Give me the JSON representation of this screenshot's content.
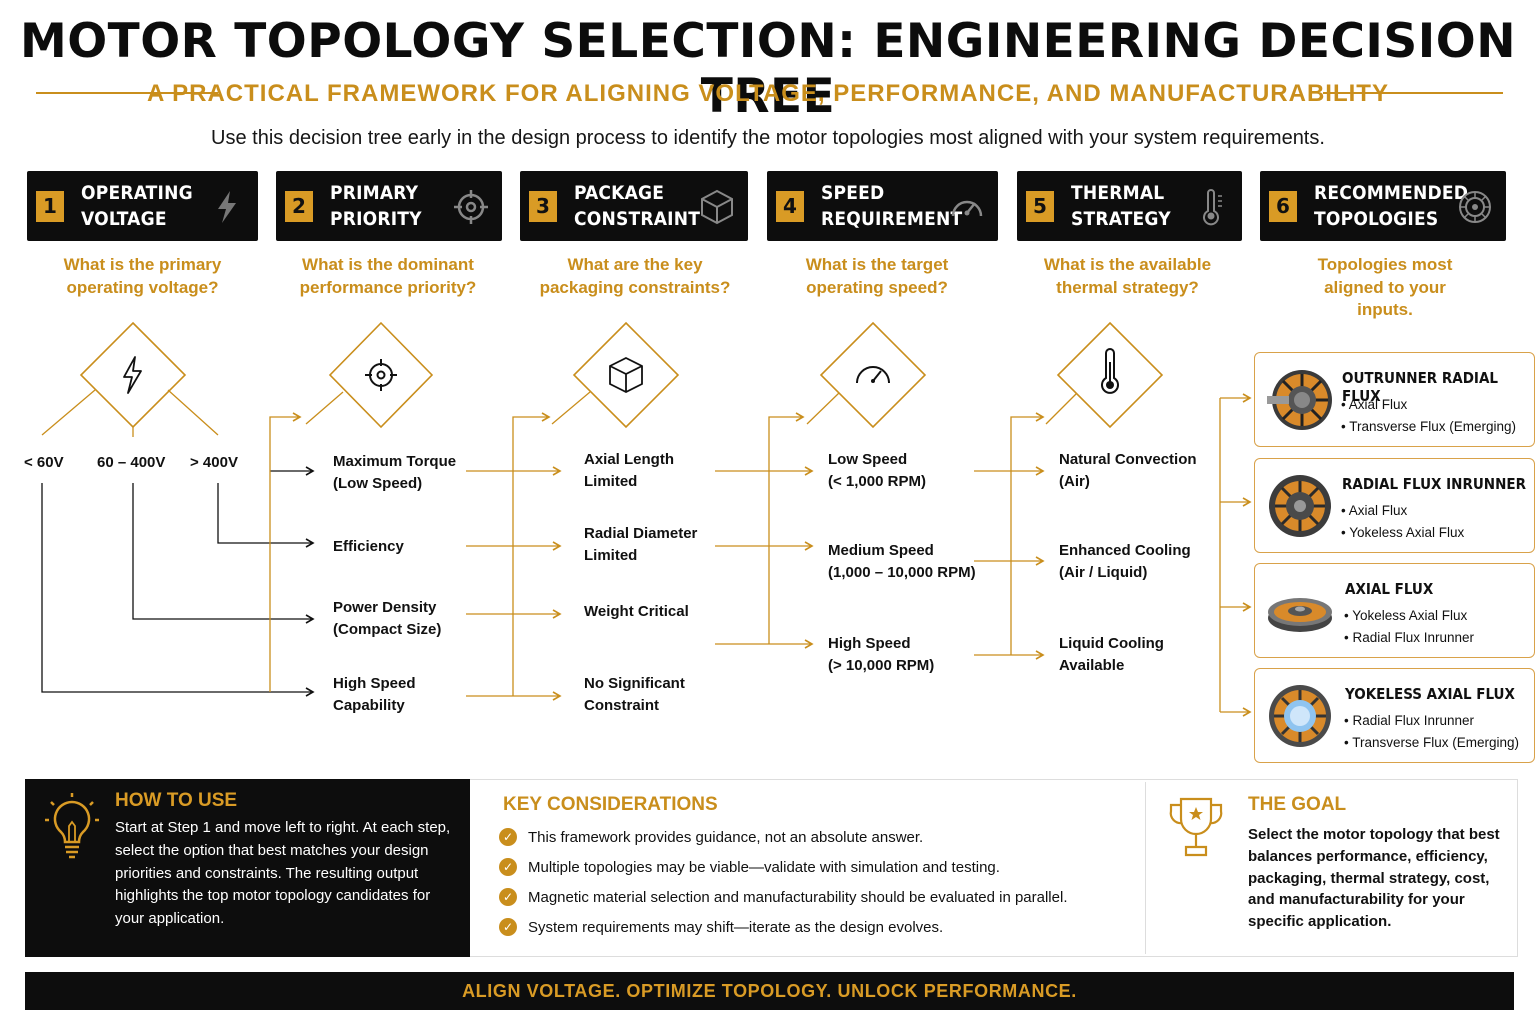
{
  "header": {
    "title": "MOTOR TOPOLOGY SELECTION: ENGINEERING DECISION TREE",
    "subtitle": "A PRACTICAL FRAMEWORK FOR ALIGNING VOLTAGE, PERFORMANCE, AND MANUFACTURABILITY",
    "intro": "Use this decision tree early in the design process to identify the motor topologies most aligned with your system requirements."
  },
  "steps": [
    {
      "num": "1",
      "title": "OPERATING\nVOLTAGE",
      "icon": "lightning-icon",
      "question": "What is the primary operating voltage?"
    },
    {
      "num": "2",
      "title": "PRIMARY\nPRIORITY",
      "icon": "target-icon",
      "question": "What is the dominant performance priority?"
    },
    {
      "num": "3",
      "title": "PACKAGE\nCONSTRAINT",
      "icon": "cube-icon",
      "question": "What are the key packaging constraints?"
    },
    {
      "num": "4",
      "title": "SPEED\nREQUIREMENT",
      "icon": "gauge-icon",
      "question": "What is the target operating speed?"
    },
    {
      "num": "5",
      "title": "THERMAL\nSTRATEGY",
      "icon": "thermometer-icon",
      "question": "What is the available thermal strategy?"
    },
    {
      "num": "6",
      "title": "RECOMMENDED\nTOPOLOGIES",
      "icon": "motor-icon",
      "question": "Topologies most aligned to your inputs."
    }
  ],
  "voltage_options": [
    "< 60V",
    "60 – 400V",
    "> 400V"
  ],
  "priority_options": [
    "Maximum Torque\n(Low Speed)",
    "Efficiency",
    "Power Density\n(Compact Size)",
    "High Speed\nCapability"
  ],
  "package_options": [
    "Axial Length\nLimited",
    "Radial Diameter\nLimited",
    "Weight Critical",
    "No Significant\nConstraint"
  ],
  "speed_options": [
    "Low Speed\n(< 1,000 RPM)",
    "Medium Speed\n(1,000 – 10,000 RPM)",
    "High Speed\n(> 10,000 RPM)"
  ],
  "thermal_options": [
    "Natural Convection\n(Air)",
    "Enhanced Cooling\n(Air / Liquid)",
    "Liquid Cooling\nAvailable"
  ],
  "topologies": [
    {
      "name": "OUTRUNNER RADIAL FLUX",
      "alts": [
        "Axial Flux",
        "Transverse Flux (Emerging)"
      ]
    },
    {
      "name": "RADIAL FLUX INRUNNER",
      "alts": [
        "Axial Flux",
        "Yokeless Axial Flux"
      ]
    },
    {
      "name": "AXIAL FLUX",
      "alts": [
        "Yokeless Axial Flux",
        "Radial Flux Inrunner"
      ]
    },
    {
      "name": "YOKELESS AXIAL FLUX",
      "alts": [
        "Radial Flux Inrunner",
        "Transverse Flux (Emerging)"
      ]
    }
  ],
  "howto": {
    "title": "HOW TO USE",
    "text": "Start at Step 1 and move left to right. At each step, select the option that best matches your design priorities and constraints. The resulting output highlights the top motor topology candidates for your application."
  },
  "considerations": {
    "title": "KEY CONSIDERATIONS",
    "items": [
      "This framework provides guidance, not an absolute answer.",
      "Multiple topologies may be viable—validate with simulation and testing.",
      "Magnetic material selection and manufacturability should be evaluated in parallel.",
      "System requirements may shift—iterate as the design evolves."
    ]
  },
  "goal": {
    "title": "THE GOAL",
    "text": "Select the motor topology that best balances performance, efficiency, packaging, thermal strategy, cost, and manufacturability for your specific application."
  },
  "footer": "ALIGN VOLTAGE. OPTIMIZE TOPOLOGY. UNLOCK PERFORMANCE.",
  "colors": {
    "accent": "#c98e1c",
    "dark": "#0d0d0d",
    "card_border": "#d9a24a"
  }
}
